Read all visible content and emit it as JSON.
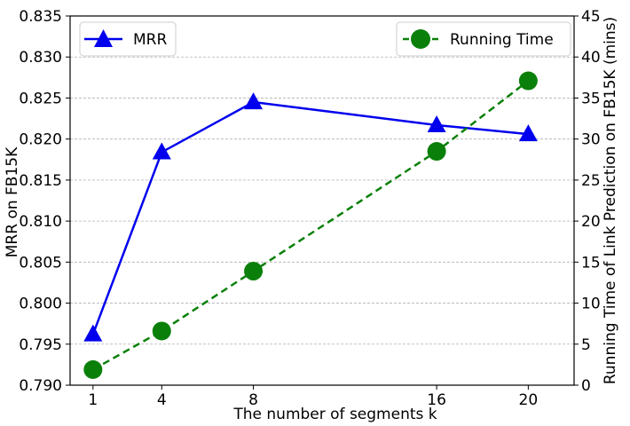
{
  "chart_data": {
    "type": "line",
    "title": "",
    "xlabel": "The number of segments k",
    "ylabel_left": "MRR on FB15K",
    "ylabel_right": "Running Time of Link Prediction on FB15K (mins)",
    "x": [
      1,
      4,
      8,
      16,
      20
    ],
    "x_tick_labels": [
      "1",
      "4",
      "8",
      "16",
      "20"
    ],
    "xlim": [
      0,
      22
    ],
    "ylim_left": [
      0.79,
      0.835
    ],
    "ylim_right": [
      0,
      45
    ],
    "yticks_left": [
      "0.790",
      "0.795",
      "0.800",
      "0.805",
      "0.810",
      "0.815",
      "0.820",
      "0.825",
      "0.830",
      "0.835"
    ],
    "yticks_right": [
      "0",
      "5",
      "10",
      "15",
      "20",
      "25",
      "30",
      "35",
      "40",
      "45"
    ],
    "grid": true,
    "series": [
      {
        "name": "MRR",
        "axis": "left",
        "color": "#0000ee",
        "marker": "triangle",
        "linestyle": "solid",
        "values": [
          0.7962,
          0.8184,
          0.8245,
          0.8217,
          0.8206
        ]
      },
      {
        "name": "Running Time",
        "axis": "right",
        "color": "#0a800a",
        "marker": "circle",
        "linestyle": "dashed",
        "values": [
          1.9,
          6.6,
          13.9,
          28.5,
          37.1
        ]
      }
    ],
    "legend": [
      {
        "label": "MRR",
        "placement": "top-left"
      },
      {
        "label": "Running Time",
        "placement": "top-right"
      }
    ]
  }
}
